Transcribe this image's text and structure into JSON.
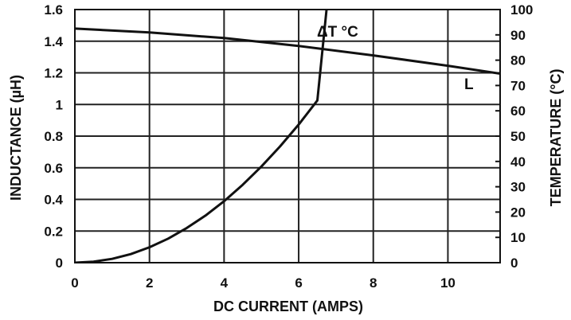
{
  "chart_data": {
    "type": "line",
    "xlabel": "DC CURRENT (AMPS)",
    "ylabel": "INDUCTANCE (µH)",
    "y2label": "TEMPERATURE (°C)",
    "xlim": [
      0,
      11.4
    ],
    "ylim": [
      0,
      1.6
    ],
    "y2lim": [
      0,
      100
    ],
    "x_ticks": [
      "0",
      "2",
      "4",
      "6",
      "8",
      "10"
    ],
    "y_ticks": [
      "0",
      "0.2",
      "0.4",
      "0.6",
      "0.8",
      "1",
      "1.2",
      "1.4",
      "1.6"
    ],
    "y2_ticks": [
      "0",
      "10",
      "20",
      "30",
      "40",
      "50",
      "60",
      "70",
      "80",
      "90",
      "100"
    ],
    "grid": true,
    "series": [
      {
        "name": "L",
        "axis": "left",
        "x": [
          0,
          2,
          4,
          6,
          8,
          10,
          11.4
        ],
        "y": [
          1.48,
          1.455,
          1.42,
          1.37,
          1.31,
          1.245,
          1.195
        ]
      },
      {
        "name": "ΔT °C",
        "axis": "right",
        "x": [
          0,
          0.5,
          1,
          1.5,
          2,
          2.5,
          3,
          3.5,
          4,
          4.5,
          5,
          5.5,
          6,
          6.5,
          6.75
        ],
        "y": [
          0,
          0.4,
          1.5,
          3.4,
          6.1,
          9.5,
          13.7,
          18.6,
          24.3,
          30.8,
          38,
          45.9,
          54.6,
          64.1,
          100.5
        ]
      }
    ]
  }
}
